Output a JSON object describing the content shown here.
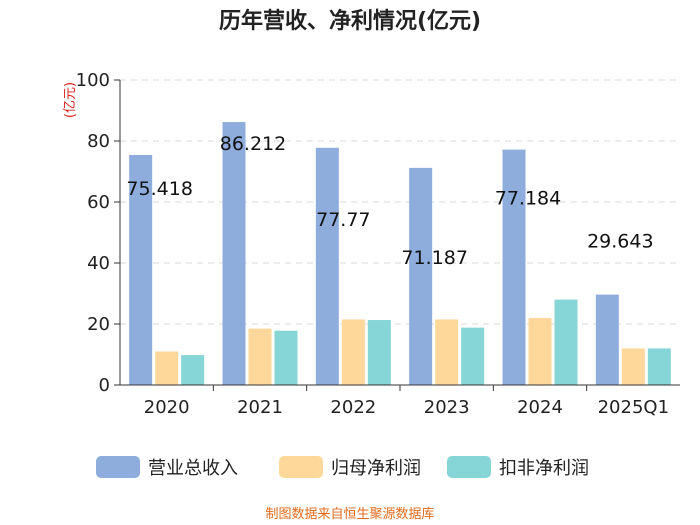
{
  "chart_data": {
    "type": "bar",
    "title": "历年营收、净利情况(亿元)",
    "ylabel": "(亿元)",
    "categories": [
      "2020",
      "2021",
      "2022",
      "2023",
      "2024",
      "2025Q1"
    ],
    "ylim": [
      0,
      100
    ],
    "yticks": [
      "0",
      "20",
      "40",
      "60",
      "80",
      "100"
    ],
    "grid": true,
    "legend_position": "bottom",
    "series": [
      {
        "name": "营业总收入",
        "color": "#8eaddc",
        "values": [
          75.418,
          86.212,
          77.77,
          71.187,
          77.184,
          29.643
        ]
      },
      {
        "name": "归母净利润",
        "color": "#fdd89a",
        "values": [
          11,
          18.5,
          21.5,
          21.5,
          22,
          12
        ]
      },
      {
        "name": "扣非净利润",
        "color": "#86d5d7",
        "values": [
          9.8,
          17.8,
          21.3,
          18.8,
          28,
          12
        ]
      }
    ],
    "data_labels": [
      "75.418",
      "86.212",
      "77.77",
      "71.187",
      "77.184",
      "29.643"
    ]
  },
  "source": "制图数据来自恒生聚源数据库"
}
